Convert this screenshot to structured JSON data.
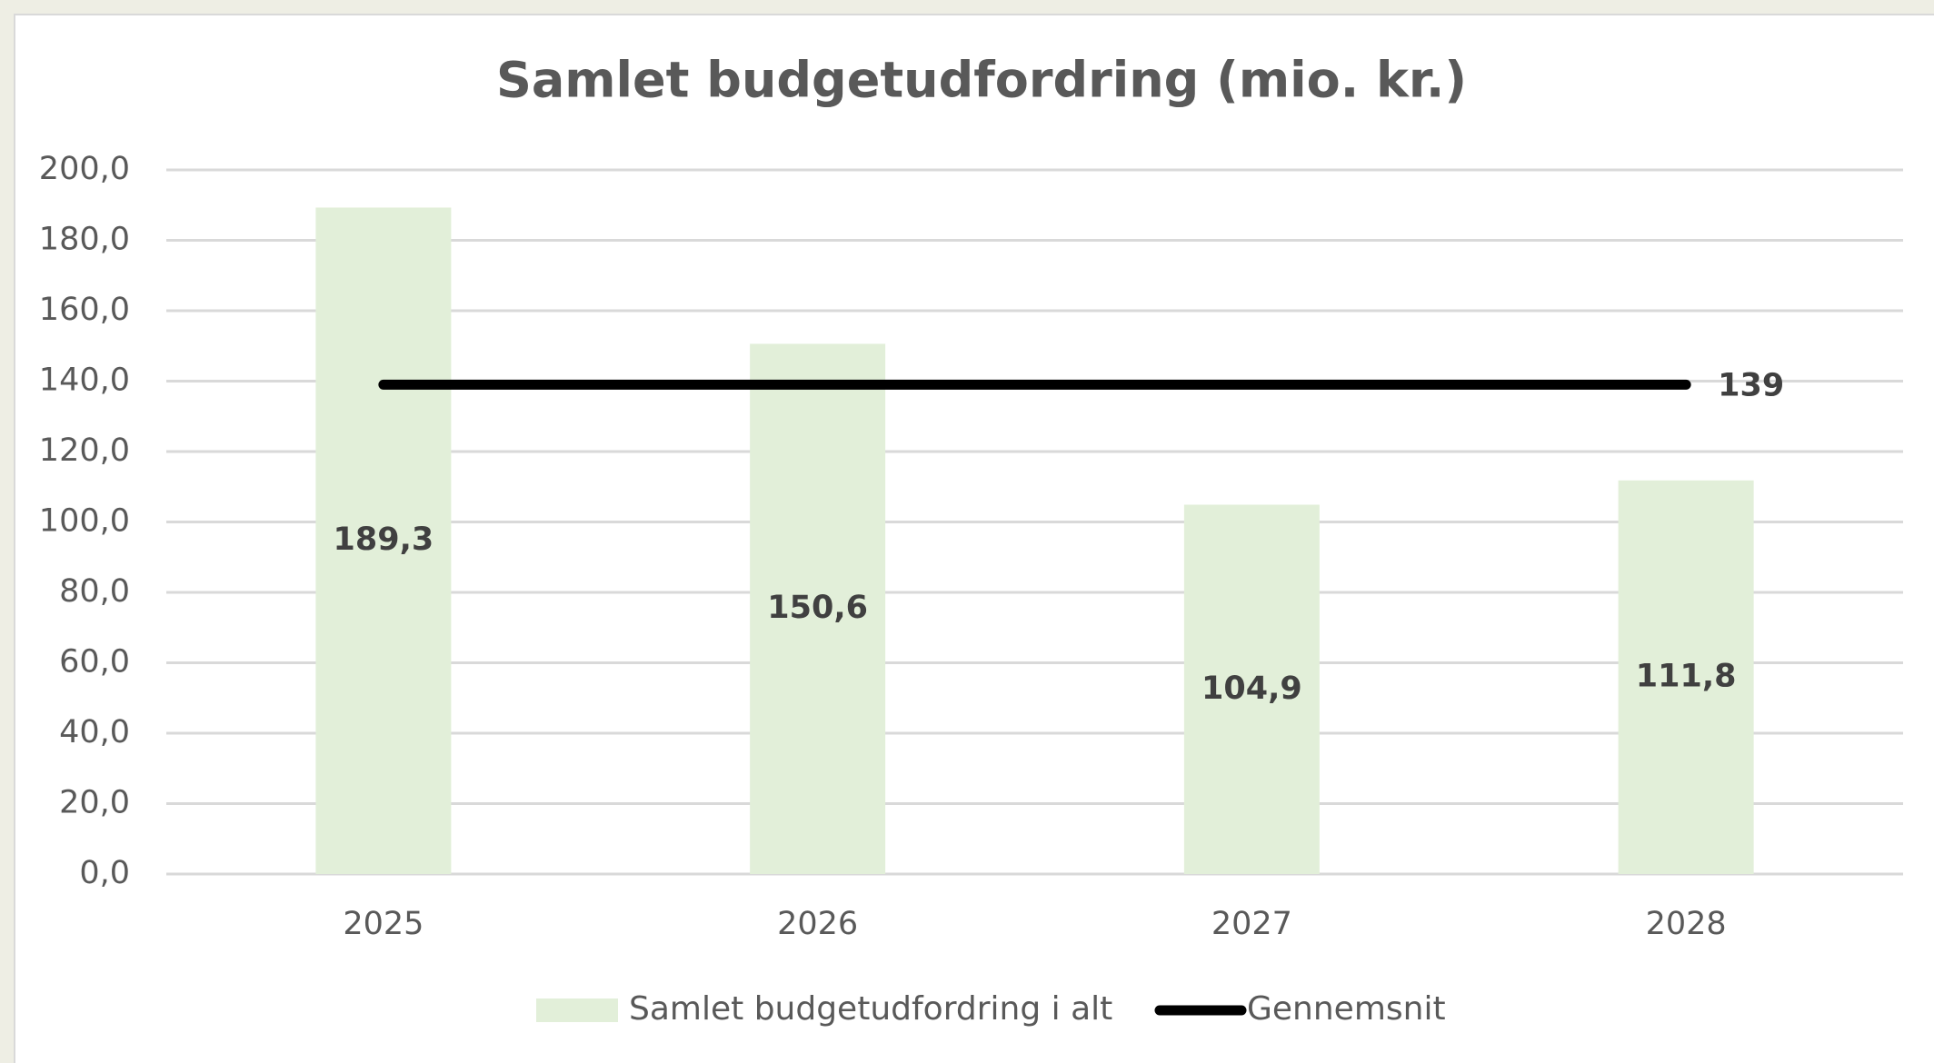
{
  "chart_data": {
    "type": "bar",
    "title": "Samlet budgetudfordring (mio. kr.)",
    "categories": [
      "2025",
      "2026",
      "2027",
      "2028"
    ],
    "series": [
      {
        "name": "Samlet budgetudfordring i alt",
        "type": "bar",
        "color": "#e2efd9",
        "values": [
          189.3,
          150.6,
          104.9,
          111.8
        ],
        "value_labels": [
          "189,3",
          "150,6",
          "104,9",
          "111,8"
        ]
      },
      {
        "name": "Gennemsnit",
        "type": "line",
        "color": "#000000",
        "values": [
          139,
          139,
          139,
          139
        ],
        "value_labels": [
          null,
          null,
          null,
          "139"
        ]
      }
    ],
    "ylim": [
      0,
      200
    ],
    "yticks": [
      {
        "value": 0,
        "label": "0,0"
      },
      {
        "value": 20,
        "label": "20,0"
      },
      {
        "value": 40,
        "label": "40,0"
      },
      {
        "value": 60,
        "label": "60,0"
      },
      {
        "value": 80,
        "label": "80,0"
      },
      {
        "value": 100,
        "label": "100,0"
      },
      {
        "value": 120,
        "label": "120,0"
      },
      {
        "value": 140,
        "label": "140,0"
      },
      {
        "value": 160,
        "label": "160,0"
      },
      {
        "value": 180,
        "label": "180,0"
      },
      {
        "value": 200,
        "label": "200,0"
      }
    ],
    "grid": true,
    "legend": "bottom"
  }
}
